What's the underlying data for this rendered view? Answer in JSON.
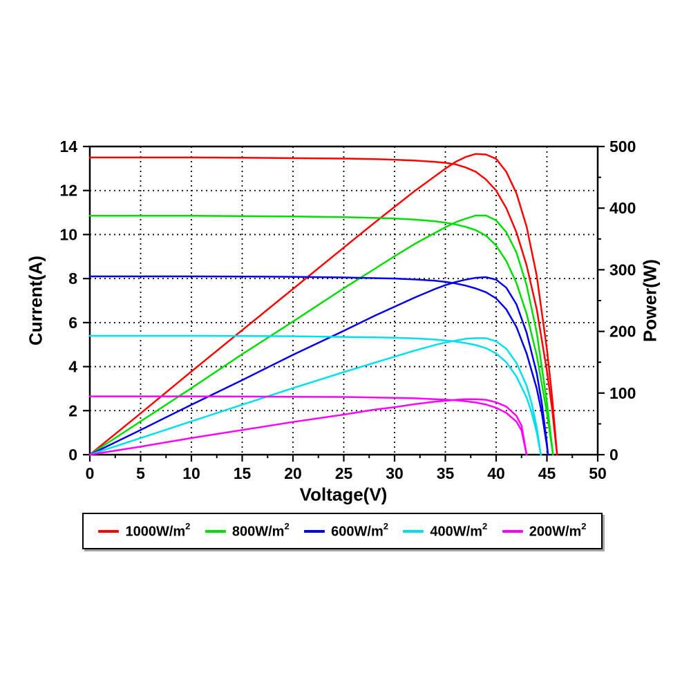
{
  "figure": {
    "background_color": "#ffffff",
    "axis_color": "#000000",
    "grid_style": "dotted"
  },
  "chart_data": {
    "type": "line",
    "title": "",
    "xlabel": "Voltage(V)",
    "ylabel_left": "Current(A)",
    "ylabel_right": "Power(W)",
    "xlim": [
      0,
      50
    ],
    "ylim_left": [
      0,
      14
    ],
    "ylim_right": [
      0,
      500
    ],
    "x_tick_values": [
      0,
      5,
      10,
      15,
      20,
      25,
      30,
      35,
      40,
      45,
      50
    ],
    "x_tick_labels": [
      "0",
      "5",
      "10",
      "15",
      "20",
      "25",
      "30",
      "35",
      "40",
      "45",
      "50"
    ],
    "x_minor_tick_values": [
      2.5,
      7.5,
      12.5,
      17.5,
      22.5,
      27.5,
      32.5,
      37.5,
      42.5,
      47.5
    ],
    "y_left_tick_values": [
      0,
      2,
      4,
      6,
      8,
      10,
      12,
      14
    ],
    "y_left_tick_labels": [
      "0",
      "2",
      "4",
      "6",
      "8",
      "10",
      "12",
      "14"
    ],
    "y_right_tick_values": [
      0,
      100,
      200,
      300,
      400,
      500
    ],
    "y_right_tick_labels": [
      "0",
      "100",
      "200",
      "300",
      "400",
      "500"
    ],
    "y_right_minor_tick_values": [
      50,
      150,
      250,
      350,
      450
    ],
    "x_grid_values": [
      5,
      10,
      15,
      20,
      25,
      30,
      35,
      40,
      45
    ],
    "y_grid_values_left": [
      2,
      4,
      6,
      8,
      10,
      12
    ],
    "grid_on": true,
    "legend_position": "bottom-box",
    "series": [
      {
        "name": "1000W/m²",
        "label_base": "1000W/m",
        "label_sup": "2",
        "color": "#ff0000",
        "isc_A": 13.5,
        "voc_V": 46.0,
        "vmp_V": 38,
        "imp_A": 12.85,
        "pmax_W": 488,
        "iv_points": [
          [
            0,
            13.5
          ],
          [
            5,
            13.5
          ],
          [
            10,
            13.5
          ],
          [
            15,
            13.49
          ],
          [
            20,
            13.47
          ],
          [
            25,
            13.45
          ],
          [
            28,
            13.43
          ],
          [
            30,
            13.4
          ],
          [
            32,
            13.36
          ],
          [
            34,
            13.3
          ],
          [
            35,
            13.26
          ],
          [
            36,
            13.19
          ],
          [
            37,
            13.05
          ],
          [
            38,
            12.85
          ],
          [
            39,
            12.5
          ],
          [
            40,
            12.0
          ],
          [
            41,
            11.2
          ],
          [
            42,
            10.1
          ],
          [
            43,
            8.6
          ],
          [
            44,
            6.6
          ],
          [
            45,
            3.8
          ],
          [
            45.5,
            2.1
          ],
          [
            46,
            0
          ]
        ],
        "pv_points": [
          [
            0,
            0
          ],
          [
            5,
            67
          ],
          [
            10,
            135
          ],
          [
            15,
            202
          ],
          [
            20,
            269
          ],
          [
            25,
            336
          ],
          [
            28,
            376
          ],
          [
            30,
            402
          ],
          [
            32,
            428
          ],
          [
            34,
            452
          ],
          [
            35,
            464
          ],
          [
            36,
            475
          ],
          [
            37,
            483
          ],
          [
            38,
            488
          ],
          [
            39,
            487
          ],
          [
            40,
            480
          ],
          [
            41,
            459
          ],
          [
            42,
            424
          ],
          [
            43,
            370
          ],
          [
            44,
            290
          ],
          [
            45,
            171
          ],
          [
            45.5,
            95
          ],
          [
            46,
            0
          ]
        ]
      },
      {
        "name": "800W/m²",
        "label_base": "800W/m",
        "label_sup": "2",
        "color": "#00dd00",
        "isc_A": 10.85,
        "voc_V": 45.6,
        "vmp_V": 38,
        "imp_A": 10.2,
        "pmax_W": 389,
        "iv_points": [
          [
            0,
            10.85
          ],
          [
            5,
            10.85
          ],
          [
            10,
            10.85
          ],
          [
            15,
            10.84
          ],
          [
            20,
            10.82
          ],
          [
            25,
            10.79
          ],
          [
            28,
            10.76
          ],
          [
            30,
            10.73
          ],
          [
            32,
            10.68
          ],
          [
            34,
            10.6
          ],
          [
            35,
            10.54
          ],
          [
            36,
            10.46
          ],
          [
            37,
            10.35
          ],
          [
            38,
            10.2
          ],
          [
            39,
            9.95
          ],
          [
            40,
            9.5
          ],
          [
            41,
            8.8
          ],
          [
            42,
            7.8
          ],
          [
            43,
            6.4
          ],
          [
            44,
            4.5
          ],
          [
            45,
            1.9
          ],
          [
            45.6,
            0
          ]
        ],
        "pv_points": [
          [
            0,
            0
          ],
          [
            5,
            54
          ],
          [
            10,
            108
          ],
          [
            15,
            163
          ],
          [
            20,
            216
          ],
          [
            25,
            270
          ],
          [
            28,
            301
          ],
          [
            30,
            322
          ],
          [
            32,
            342
          ],
          [
            34,
            360
          ],
          [
            35,
            369
          ],
          [
            36,
            377
          ],
          [
            37,
            383
          ],
          [
            38,
            388
          ],
          [
            39,
            388
          ],
          [
            40,
            380
          ],
          [
            41,
            361
          ],
          [
            42,
            328
          ],
          [
            43,
            275
          ],
          [
            44,
            198
          ],
          [
            45,
            85
          ],
          [
            45.6,
            0
          ]
        ]
      },
      {
        "name": "600W/m²",
        "label_base": "600W/m",
        "label_sup": "2",
        "color": "#0000ee",
        "isc_A": 8.1,
        "voc_V": 45.1,
        "vmp_V": 38,
        "imp_A": 7.55,
        "pmax_W": 288,
        "iv_points": [
          [
            0,
            8.1
          ],
          [
            5,
            8.1
          ],
          [
            10,
            8.1
          ],
          [
            15,
            8.09
          ],
          [
            20,
            8.08
          ],
          [
            25,
            8.05
          ],
          [
            28,
            8.02
          ],
          [
            30,
            8.0
          ],
          [
            32,
            7.96
          ],
          [
            34,
            7.9
          ],
          [
            35,
            7.85
          ],
          [
            36,
            7.78
          ],
          [
            37,
            7.68
          ],
          [
            38,
            7.55
          ],
          [
            39,
            7.38
          ],
          [
            40,
            7.1
          ],
          [
            41,
            6.6
          ],
          [
            42,
            5.8
          ],
          [
            43,
            4.6
          ],
          [
            44,
            3.0
          ],
          [
            44.5,
            1.9
          ],
          [
            45,
            0.4
          ],
          [
            45.1,
            0
          ]
        ],
        "pv_points": [
          [
            0,
            0
          ],
          [
            5,
            40
          ],
          [
            10,
            81
          ],
          [
            15,
            121
          ],
          [
            20,
            162
          ],
          [
            25,
            201
          ],
          [
            28,
            225
          ],
          [
            30,
            240
          ],
          [
            32,
            255
          ],
          [
            34,
            269
          ],
          [
            35,
            275
          ],
          [
            36,
            280
          ],
          [
            37,
            284
          ],
          [
            38,
            287
          ],
          [
            39,
            288
          ],
          [
            40,
            284
          ],
          [
            41,
            271
          ],
          [
            42,
            244
          ],
          [
            43,
            198
          ],
          [
            44,
            132
          ],
          [
            44.5,
            84
          ],
          [
            45,
            18
          ],
          [
            45.1,
            0
          ]
        ]
      },
      {
        "name": "400W/m²",
        "label_base": "400W/m",
        "label_sup": "2",
        "color": "#00dfee",
        "isc_A": 5.4,
        "voc_V": 44.4,
        "vmp_V": 38,
        "imp_A": 4.98,
        "pmax_W": 190,
        "iv_points": [
          [
            0,
            5.4
          ],
          [
            5,
            5.4
          ],
          [
            10,
            5.4
          ],
          [
            15,
            5.39
          ],
          [
            20,
            5.38
          ],
          [
            25,
            5.35
          ],
          [
            28,
            5.33
          ],
          [
            30,
            5.31
          ],
          [
            32,
            5.28
          ],
          [
            34,
            5.23
          ],
          [
            35,
            5.19
          ],
          [
            36,
            5.14
          ],
          [
            37,
            5.07
          ],
          [
            38,
            4.98
          ],
          [
            39,
            4.84
          ],
          [
            40,
            4.6
          ],
          [
            41,
            4.2
          ],
          [
            42,
            3.55
          ],
          [
            43,
            2.6
          ],
          [
            43.5,
            1.9
          ],
          [
            44,
            1.0
          ],
          [
            44.4,
            0
          ]
        ],
        "pv_points": [
          [
            0,
            0
          ],
          [
            5,
            27
          ],
          [
            10,
            54
          ],
          [
            15,
            81
          ],
          [
            20,
            108
          ],
          [
            25,
            134
          ],
          [
            28,
            149
          ],
          [
            30,
            159
          ],
          [
            32,
            169
          ],
          [
            34,
            178
          ],
          [
            35,
            182
          ],
          [
            36,
            185
          ],
          [
            37,
            188
          ],
          [
            38,
            189
          ],
          [
            39,
            189
          ],
          [
            40,
            184
          ],
          [
            41,
            172
          ],
          [
            42,
            149
          ],
          [
            43,
            112
          ],
          [
            43.5,
            83
          ],
          [
            44,
            44
          ],
          [
            44.4,
            0
          ]
        ]
      },
      {
        "name": "200W/m²",
        "label_base": "200W/m",
        "label_sup": "2",
        "color": "#ff00ff",
        "isc_A": 2.65,
        "voc_V": 43.0,
        "vmp_V": 37.5,
        "imp_A": 2.4,
        "pmax_W": 90,
        "iv_points": [
          [
            0,
            2.65
          ],
          [
            5,
            2.65
          ],
          [
            10,
            2.65
          ],
          [
            15,
            2.64
          ],
          [
            20,
            2.63
          ],
          [
            25,
            2.62
          ],
          [
            28,
            2.6
          ],
          [
            30,
            2.58
          ],
          [
            32,
            2.56
          ],
          [
            34,
            2.52
          ],
          [
            35,
            2.5
          ],
          [
            36,
            2.47
          ],
          [
            37,
            2.43
          ],
          [
            38,
            2.37
          ],
          [
            39,
            2.28
          ],
          [
            40,
            2.13
          ],
          [
            41,
            1.9
          ],
          [
            42,
            1.5
          ],
          [
            42.5,
            1.1
          ],
          [
            43,
            0
          ]
        ],
        "pv_points": [
          [
            0,
            0
          ],
          [
            5,
            13
          ],
          [
            10,
            27
          ],
          [
            15,
            40
          ],
          [
            20,
            53
          ],
          [
            25,
            65
          ],
          [
            28,
            73
          ],
          [
            30,
            77
          ],
          [
            32,
            82
          ],
          [
            34,
            86
          ],
          [
            35,
            87.5
          ],
          [
            36,
            89
          ],
          [
            37,
            90
          ],
          [
            38,
            90
          ],
          [
            39,
            89
          ],
          [
            40,
            85
          ],
          [
            41,
            78
          ],
          [
            42,
            63
          ],
          [
            42.5,
            47
          ],
          [
            43,
            0
          ]
        ]
      }
    ]
  }
}
